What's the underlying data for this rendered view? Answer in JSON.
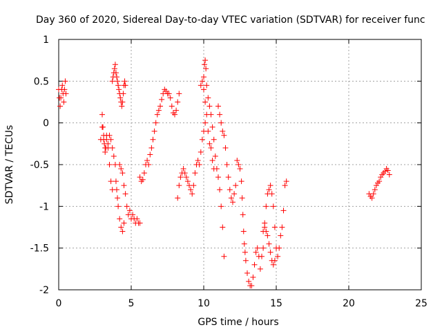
{
  "chart_data": {
    "type": "scatter",
    "title": "Day 360 of 2020, Sidereal Day-to-day VTEC variation (SDTVAR) for receiver func",
    "xlabel": "GPS time / hours",
    "ylabel": "SDTVAR / TECUs",
    "xlim": [
      0,
      25
    ],
    "ylim": [
      -2,
      1
    ],
    "xticks": [
      0,
      5,
      10,
      15,
      20,
      25
    ],
    "xtick_labels": [
      "0",
      "5",
      "10",
      "15",
      "20",
      "25"
    ],
    "yticks": [
      -2,
      -1.5,
      -1,
      -0.5,
      0,
      0.5,
      1
    ],
    "ytick_labels": [
      "-2",
      "-1.5",
      "-1",
      "-0.5",
      "0",
      "0.5",
      "1"
    ],
    "grid": true,
    "legend": "none",
    "marker": "+",
    "color": "#ff0000",
    "series": [
      {
        "name": "SDTVAR",
        "points": [
          [
            0.0,
            0.4
          ],
          [
            0.05,
            0.3
          ],
          [
            0.1,
            0.2
          ],
          [
            0.15,
            0.3
          ],
          [
            0.2,
            0.4
          ],
          [
            0.25,
            0.45
          ],
          [
            0.3,
            0.35
          ],
          [
            0.35,
            0.25
          ],
          [
            0.4,
            0.4
          ],
          [
            0.45,
            0.5
          ],
          [
            0.5,
            0.35
          ],
          [
            2.9,
            -0.2
          ],
          [
            3.0,
            0.1
          ],
          [
            3.05,
            -0.05
          ],
          [
            3.1,
            -0.15
          ],
          [
            3.15,
            -0.25
          ],
          [
            3.2,
            -0.35
          ],
          [
            3.25,
            -0.3
          ],
          [
            3.3,
            -0.2
          ],
          [
            3.4,
            -0.25
          ],
          [
            3.5,
            -0.15
          ],
          [
            3.6,
            -0.2
          ],
          [
            3.7,
            -0.3
          ],
          [
            3.8,
            -0.4
          ],
          [
            3.9,
            -0.5
          ],
          [
            3.95,
            -0.7
          ],
          [
            4.0,
            -0.8
          ],
          [
            4.05,
            -0.9
          ],
          [
            4.1,
            -1.0
          ],
          [
            4.2,
            -1.15
          ],
          [
            4.3,
            -1.25
          ],
          [
            4.4,
            -1.3
          ],
          [
            4.5,
            -1.2
          ],
          [
            3.0,
            -0.05
          ],
          [
            3.1,
            -0.2
          ],
          [
            3.2,
            -0.3
          ],
          [
            3.3,
            -0.15
          ],
          [
            3.4,
            -0.3
          ],
          [
            3.5,
            -0.5
          ],
          [
            3.6,
            -0.7
          ],
          [
            3.7,
            -0.8
          ],
          [
            3.7,
            0.5
          ],
          [
            3.75,
            0.55
          ],
          [
            3.8,
            0.6
          ],
          [
            3.85,
            0.65
          ],
          [
            3.9,
            0.7
          ],
          [
            3.95,
            0.6
          ],
          [
            4.0,
            0.55
          ],
          [
            4.05,
            0.5
          ],
          [
            4.1,
            0.45
          ],
          [
            4.15,
            0.4
          ],
          [
            4.2,
            0.35
          ],
          [
            4.25,
            0.3
          ],
          [
            4.3,
            0.25
          ],
          [
            4.35,
            0.2
          ],
          [
            4.4,
            0.25
          ],
          [
            4.45,
            0.35
          ],
          [
            4.5,
            0.45
          ],
          [
            4.55,
            0.5
          ],
          [
            4.6,
            0.45
          ],
          [
            4.2,
            -0.5
          ],
          [
            4.3,
            -0.55
          ],
          [
            4.4,
            -0.6
          ],
          [
            4.5,
            -0.75
          ],
          [
            4.6,
            -0.85
          ],
          [
            4.7,
            -1.0
          ],
          [
            4.8,
            -1.1
          ],
          [
            4.9,
            -1.05
          ],
          [
            5.0,
            -1.15
          ],
          [
            5.1,
            -1.1
          ],
          [
            5.2,
            -1.15
          ],
          [
            5.3,
            -1.2
          ],
          [
            5.4,
            -1.15
          ],
          [
            5.5,
            -1.2
          ],
          [
            5.6,
            -1.2
          ],
          [
            5.6,
            -0.65
          ],
          [
            5.7,
            -0.7
          ],
          [
            5.8,
            -0.68
          ],
          [
            5.9,
            -0.6
          ],
          [
            6.0,
            -0.5
          ],
          [
            6.1,
            -0.45
          ],
          [
            6.2,
            -0.5
          ],
          [
            6.3,
            -0.38
          ],
          [
            6.4,
            -0.3
          ],
          [
            6.5,
            -0.2
          ],
          [
            6.6,
            -0.1
          ],
          [
            6.7,
            0.0
          ],
          [
            6.8,
            0.1
          ],
          [
            6.9,
            0.15
          ],
          [
            7.0,
            0.2
          ],
          [
            7.1,
            0.28
          ],
          [
            7.2,
            0.35
          ],
          [
            7.3,
            0.4
          ],
          [
            7.4,
            0.38
          ],
          [
            7.5,
            0.35
          ],
          [
            7.6,
            0.35
          ],
          [
            7.7,
            0.3
          ],
          [
            7.8,
            0.2
          ],
          [
            7.9,
            0.12
          ],
          [
            8.0,
            0.1
          ],
          [
            8.1,
            0.15
          ],
          [
            8.2,
            0.25
          ],
          [
            8.3,
            0.35
          ],
          [
            8.2,
            -0.9
          ],
          [
            8.3,
            -0.75
          ],
          [
            8.4,
            -0.65
          ],
          [
            8.5,
            -0.6
          ],
          [
            8.6,
            -0.55
          ],
          [
            8.7,
            -0.6
          ],
          [
            8.8,
            -0.65
          ],
          [
            8.9,
            -0.7
          ],
          [
            9.0,
            -0.75
          ],
          [
            9.1,
            -0.8
          ],
          [
            9.2,
            -0.85
          ],
          [
            9.3,
            -0.75
          ],
          [
            9.4,
            -0.6
          ],
          [
            9.5,
            -0.5
          ],
          [
            9.6,
            -0.45
          ],
          [
            9.7,
            -0.5
          ],
          [
            9.8,
            -0.35
          ],
          [
            9.9,
            -0.2
          ],
          [
            10.0,
            -0.1
          ],
          [
            10.1,
            0.0
          ],
          [
            9.8,
            0.45
          ],
          [
            9.9,
            0.5
          ],
          [
            10.0,
            0.55
          ],
          [
            10.05,
            0.7
          ],
          [
            10.1,
            0.75
          ],
          [
            10.15,
            0.65
          ],
          [
            10.2,
            0.45
          ],
          [
            10.3,
            0.3
          ],
          [
            10.4,
            0.2
          ],
          [
            10.5,
            0.1
          ],
          [
            10.6,
            -0.05
          ],
          [
            10.7,
            -0.2
          ],
          [
            10.8,
            -0.4
          ],
          [
            10.9,
            -0.55
          ],
          [
            11.0,
            -0.65
          ],
          [
            11.1,
            -0.8
          ],
          [
            11.2,
            -1.0
          ],
          [
            11.3,
            -1.25
          ],
          [
            11.4,
            -1.6
          ],
          [
            10.0,
            0.4
          ],
          [
            10.1,
            0.25
          ],
          [
            10.2,
            0.1
          ],
          [
            10.3,
            -0.1
          ],
          [
            10.4,
            -0.25
          ],
          [
            10.5,
            -0.3
          ],
          [
            10.6,
            -0.45
          ],
          [
            10.7,
            -0.55
          ],
          [
            11.0,
            0.2
          ],
          [
            11.1,
            0.1
          ],
          [
            11.2,
            0.0
          ],
          [
            11.3,
            -0.1
          ],
          [
            11.4,
            -0.15
          ],
          [
            11.5,
            -0.3
          ],
          [
            11.6,
            -0.5
          ],
          [
            11.7,
            -0.65
          ],
          [
            11.8,
            -0.8
          ],
          [
            11.9,
            -0.9
          ],
          [
            12.0,
            -0.95
          ],
          [
            12.1,
            -0.85
          ],
          [
            12.2,
            -0.75
          ],
          [
            12.3,
            -0.45
          ],
          [
            12.4,
            -0.5
          ],
          [
            12.5,
            -0.55
          ],
          [
            12.6,
            -0.7
          ],
          [
            12.65,
            -0.9
          ],
          [
            12.7,
            -1.1
          ],
          [
            12.75,
            -1.3
          ],
          [
            12.8,
            -1.45
          ],
          [
            12.85,
            -1.55
          ],
          [
            12.9,
            -1.65
          ],
          [
            13.0,
            -1.8
          ],
          [
            13.1,
            -1.9
          ],
          [
            13.2,
            -1.95
          ],
          [
            13.3,
            -1.95
          ],
          [
            13.4,
            -1.85
          ],
          [
            13.5,
            -1.7
          ],
          [
            13.6,
            -1.55
          ],
          [
            13.7,
            -1.5
          ],
          [
            13.8,
            -1.6
          ],
          [
            13.9,
            -1.75
          ],
          [
            14.0,
            -1.6
          ],
          [
            14.1,
            -1.5
          ],
          [
            14.1,
            -1.3
          ],
          [
            14.2,
            -1.2
          ],
          [
            14.3,
            -1.0
          ],
          [
            14.4,
            -0.85
          ],
          [
            14.5,
            -0.8
          ],
          [
            14.6,
            -0.75
          ],
          [
            14.7,
            -0.85
          ],
          [
            14.8,
            -1.0
          ],
          [
            14.9,
            -1.25
          ],
          [
            15.0,
            -1.5
          ],
          [
            15.1,
            -1.6
          ],
          [
            15.2,
            -1.5
          ],
          [
            15.3,
            -1.35
          ],
          [
            15.4,
            -1.25
          ],
          [
            15.5,
            -1.05
          ],
          [
            15.6,
            -0.75
          ],
          [
            15.7,
            -0.7
          ],
          [
            14.2,
            -1.25
          ],
          [
            14.3,
            -1.3
          ],
          [
            14.4,
            -1.35
          ],
          [
            14.5,
            -1.45
          ],
          [
            14.6,
            -1.55
          ],
          [
            14.7,
            -1.65
          ],
          [
            14.8,
            -1.7
          ],
          [
            14.9,
            -1.65
          ],
          [
            21.4,
            -0.85
          ],
          [
            21.5,
            -0.88
          ],
          [
            21.6,
            -0.9
          ],
          [
            21.7,
            -0.85
          ],
          [
            21.8,
            -0.8
          ],
          [
            21.9,
            -0.75
          ],
          [
            22.0,
            -0.72
          ],
          [
            22.1,
            -0.7
          ],
          [
            22.2,
            -0.65
          ],
          [
            22.3,
            -0.62
          ],
          [
            22.4,
            -0.6
          ],
          [
            22.5,
            -0.58
          ],
          [
            22.6,
            -0.55
          ],
          [
            22.7,
            -0.57
          ],
          [
            22.8,
            -0.62
          ]
        ]
      }
    ]
  }
}
